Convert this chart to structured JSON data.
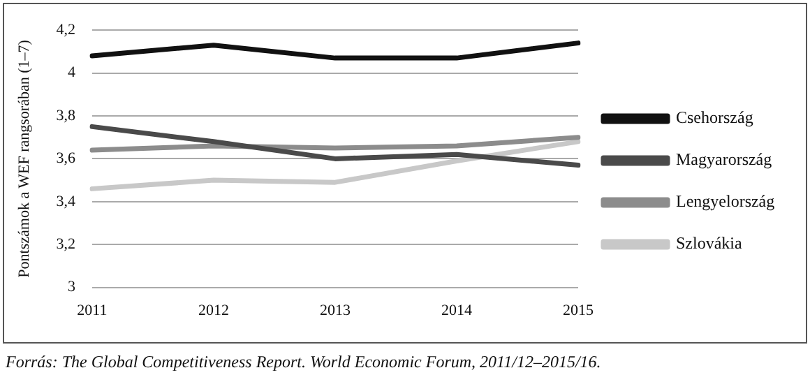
{
  "chart_data": {
    "type": "line",
    "ylabel": "Pontszámok a WEF rangsorában (1–7)",
    "categories": [
      "2011",
      "2012",
      "2013",
      "2014",
      "2015"
    ],
    "series": [
      {
        "name": "Csehország",
        "color": "#111111",
        "values": [
          4.08,
          4.13,
          4.07,
          4.07,
          4.14
        ]
      },
      {
        "name": "Magyarország",
        "color": "#4a4a4a",
        "values": [
          3.75,
          3.68,
          3.6,
          3.62,
          3.57
        ]
      },
      {
        "name": "Lengyelország",
        "color": "#8c8c8c",
        "values": [
          3.64,
          3.66,
          3.65,
          3.66,
          3.7
        ]
      },
      {
        "name": "Szlovákia",
        "color": "#c8c8c8",
        "values": [
          3.46,
          3.5,
          3.49,
          3.59,
          3.68
        ]
      }
    ],
    "ylim": [
      3,
      4.2
    ],
    "yticks": [
      {
        "value": 3,
        "label": "3"
      },
      {
        "value": 3.2,
        "label": "3,2"
      },
      {
        "value": 3.4,
        "label": "3,4"
      },
      {
        "value": 3.6,
        "label": "3,6"
      },
      {
        "value": 3.8,
        "label": "3,8"
      },
      {
        "value": 4,
        "label": "4"
      },
      {
        "value": 4.2,
        "label": "4,2"
      }
    ],
    "grid": "y",
    "legend": "right",
    "marker": "none",
    "line_style": "solid",
    "annotations": [
      "Forrás: The Global Competitiveness Report. World Economic Forum, 2011/12–2015/16."
    ]
  }
}
